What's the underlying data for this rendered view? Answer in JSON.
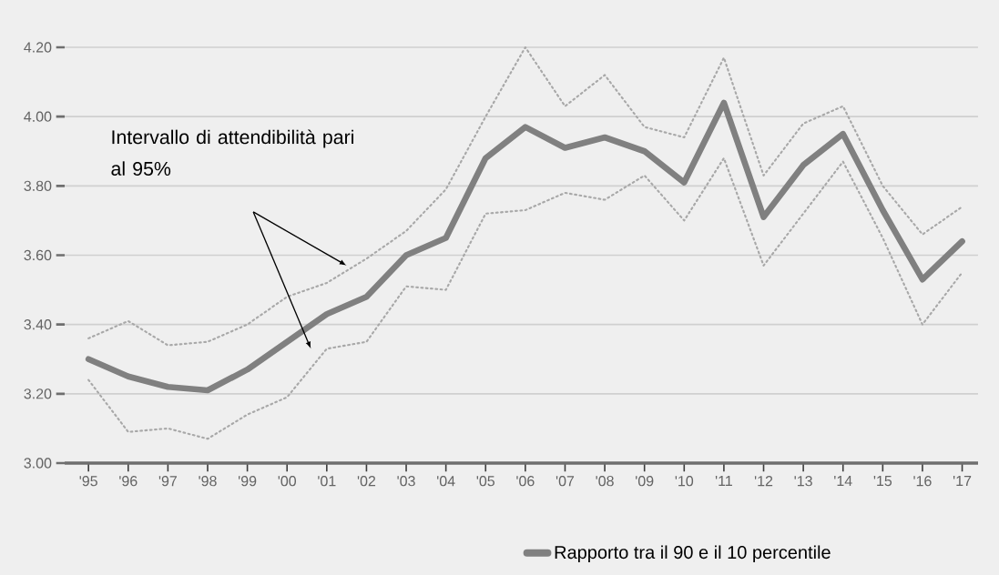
{
  "chart_data": {
    "type": "line",
    "categories": [
      "'95",
      "'96",
      "'97",
      "'98",
      "'99",
      "'00",
      "'01",
      "'02",
      "'03",
      "'04",
      "'05",
      "'06",
      "'07",
      "'08",
      "'09",
      "'10",
      "'11",
      "'12",
      "'13",
      "'14",
      "'15",
      "'16",
      "'17"
    ],
    "series": [
      {
        "color": "#a8a8a8",
        "line_style": "dotted",
        "values": [
          3.36,
          3.41,
          3.34,
          3.35,
          3.4,
          3.48,
          3.52,
          3.59,
          3.67,
          3.79,
          4.0,
          4.2,
          4.03,
          4.12,
          3.97,
          3.94,
          4.17,
          3.83,
          3.98,
          4.03,
          3.8,
          3.66,
          3.74
        ]
      },
      {
        "color": "#a8a8a8",
        "line_style": "dotted",
        "values": [
          3.24,
          3.09,
          3.1,
          3.07,
          3.14,
          3.19,
          3.33,
          3.35,
          3.51,
          3.5,
          3.72,
          3.73,
          3.78,
          3.76,
          3.83,
          3.7,
          3.88,
          3.57,
          3.72,
          3.87,
          3.65,
          3.4,
          3.55
        ]
      },
      {
        "name": "Rapporto tra il 90 e il 10 percentile",
        "color": "#808080",
        "line_style": "solid",
        "values": [
          3.3,
          3.25,
          3.22,
          3.21,
          3.27,
          3.35,
          3.43,
          3.48,
          3.6,
          3.65,
          3.88,
          3.97,
          3.91,
          3.94,
          3.9,
          3.81,
          4.04,
          3.71,
          3.86,
          3.95,
          3.73,
          3.53,
          3.64
        ]
      }
    ],
    "ylim": [
      3.0,
      4.2
    ],
    "yticks": [
      {
        "value": 3.0,
        "label": "3.00"
      },
      {
        "value": 3.2,
        "label": "3.20"
      },
      {
        "value": 3.4,
        "label": "3.40"
      },
      {
        "value": 3.6,
        "label": "3.60"
      },
      {
        "value": 3.8,
        "label": "3.80"
      },
      {
        "value": 4.0,
        "label": "4.00"
      },
      {
        "value": 4.2,
        "label": "4.20"
      }
    ],
    "grid": "y",
    "legend": "bottom",
    "annotations": [
      "Intervallo di attendibilità pari al 95%"
    ]
  }
}
